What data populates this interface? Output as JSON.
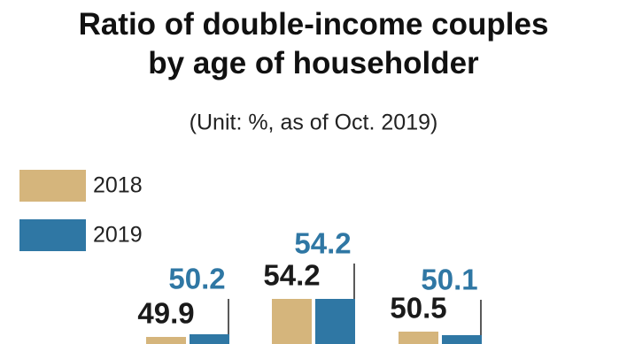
{
  "chart_data": {
    "type": "bar",
    "title": "Ratio of double-income couples by age of householder",
    "subtitle": "(Unit: %, as of Oct. 2019)",
    "categories": [
      null,
      null,
      null
    ],
    "series": [
      {
        "name": "2018",
        "color": "#d5b57c",
        "values": [
          49.9,
          54.2,
          50.5
        ]
      },
      {
        "name": "2019",
        "color": "#2f77a4",
        "values": [
          50.2,
          54.2,
          50.1
        ]
      }
    ]
  }
}
